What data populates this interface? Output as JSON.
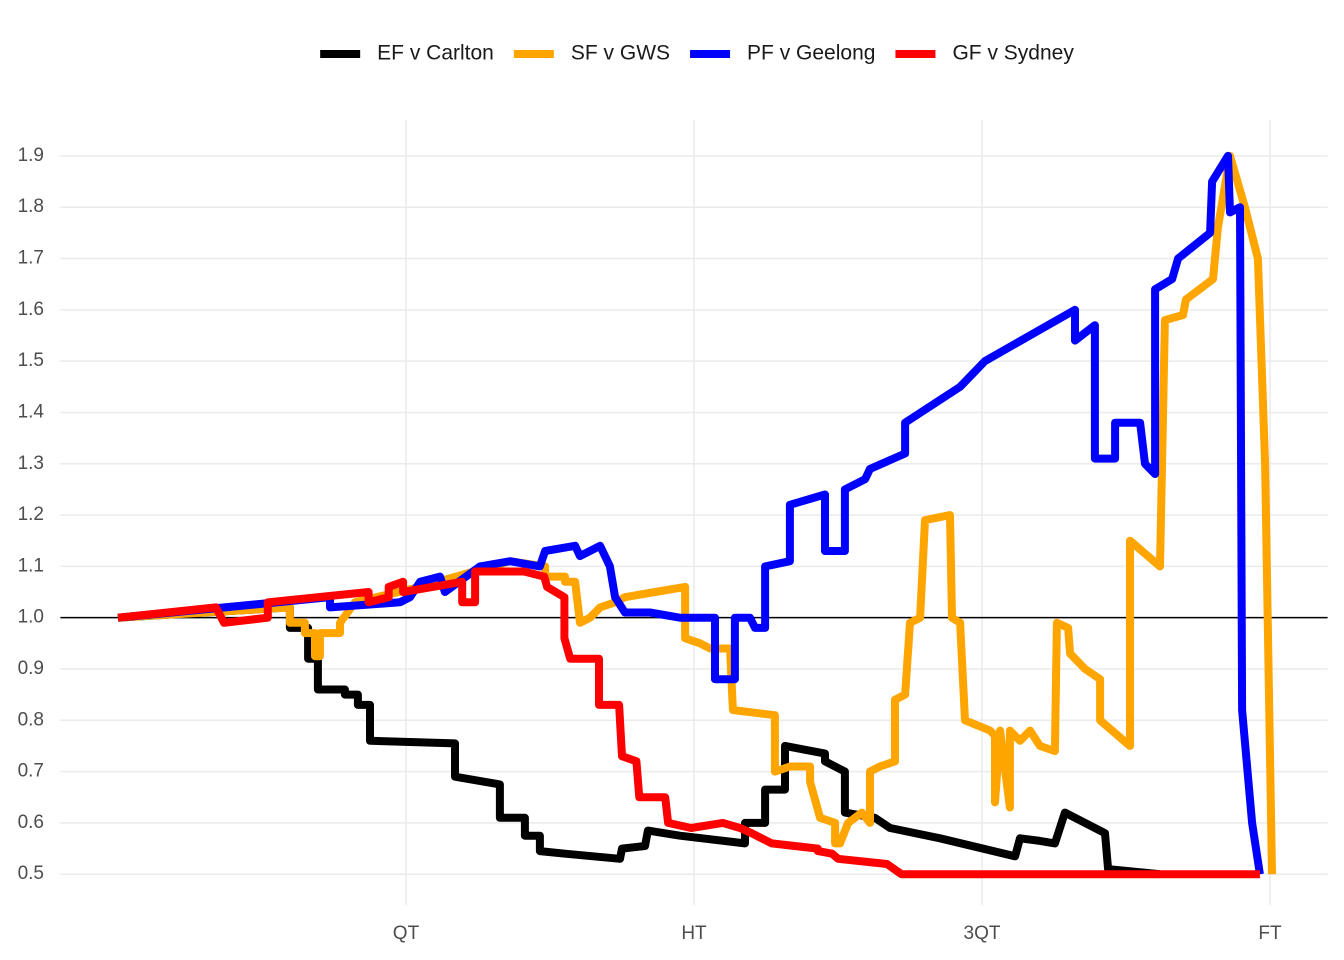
{
  "chart_data": {
    "type": "line",
    "xlim": [
      -0.2,
      4.2
    ],
    "xticks": [
      {
        "value": 1,
        "label": "QT"
      },
      {
        "value": 2,
        "label": "HT"
      },
      {
        "value": 3,
        "label": "3QT"
      },
      {
        "value": 4,
        "label": "FT"
      }
    ],
    "ylim": [
      0.44,
      1.97
    ],
    "yticks": [
      0.5,
      0.6,
      0.7,
      0.8,
      0.9,
      {
        "value": 1,
        "label": "1.0"
      },
      1.1,
      1.2,
      1.3,
      1.4,
      1.5,
      1.6,
      1.7,
      1.8,
      1.9
    ],
    "hline": 1,
    "grid": true,
    "legend": "top",
    "series": [
      {
        "name": "EF v Carlton",
        "color": "#000000",
        "x": [
          0,
          0.597,
          0.597,
          0.66,
          0.66,
          0.694,
          0.694,
          0.788,
          0.788,
          0.833,
          0.833,
          0.875,
          0.875,
          1.17,
          1.17,
          1.326,
          1.326,
          1.413,
          1.413,
          1.465,
          1.465,
          1.552,
          1.743,
          1.75,
          1.83,
          1.84,
          1.951,
          2.177,
          2.177,
          2.247,
          2.247,
          2.316,
          2.316,
          2.455,
          2.455,
          2.524,
          2.524,
          2.628,
          2.681,
          2.854,
          3.115,
          3.132,
          3.201,
          3.253,
          3.288,
          3.427,
          3.438,
          3.618
        ],
        "values": [
          1.0,
          1.02,
          0.98,
          0.98,
          0.92,
          0.92,
          0.86,
          0.86,
          0.85,
          0.85,
          0.83,
          0.83,
          0.76,
          0.755,
          0.69,
          0.675,
          0.61,
          0.61,
          0.575,
          0.575,
          0.545,
          0.54,
          0.53,
          0.55,
          0.555,
          0.585,
          0.575,
          0.56,
          0.6,
          0.6,
          0.665,
          0.665,
          0.75,
          0.735,
          0.72,
          0.7,
          0.62,
          0.61,
          0.59,
          0.57,
          0.535,
          0.57,
          0.565,
          0.56,
          0.62,
          0.58,
          0.51,
          0.5
        ]
      },
      {
        "name": "SF v GWS",
        "color": "#ffa500",
        "x": [
          0,
          0.597,
          0.597,
          0.649,
          0.649,
          0.684,
          0.684,
          0.701,
          0.701,
          0.771,
          0.771,
          0.823,
          1.049,
          1.361,
          1.483,
          1.483,
          1.552,
          1.552,
          1.587,
          1.604,
          1.639,
          1.674,
          1.726,
          1.76,
          1.865,
          1.969,
          1.969,
          2.021,
          2.056,
          2.125,
          2.135,
          2.281,
          2.281,
          2.333,
          2.403,
          2.403,
          2.438,
          2.49,
          2.49,
          2.507,
          2.535,
          2.583,
          2.611,
          2.611,
          2.646,
          2.698,
          2.698,
          2.733,
          2.75,
          2.785,
          2.802,
          2.889,
          2.896,
          2.924,
          2.941,
          3.028,
          3.045,
          3.045,
          3.063,
          3.097,
          3.097,
          3.132,
          3.167,
          3.201,
          3.253,
          3.26,
          3.299,
          3.306,
          3.358,
          3.41,
          3.41,
          3.514,
          3.514,
          3.618,
          3.635,
          3.698,
          3.708,
          3.802,
          3.819,
          3.861,
          3.913,
          3.958,
          3.983,
          4.007
        ],
        "values": [
          1.0,
          1.02,
          0.99,
          0.99,
          0.97,
          0.97,
          0.925,
          0.925,
          0.97,
          0.97,
          0.99,
          1.03,
          1.06,
          1.11,
          1.1,
          1.08,
          1.08,
          1.07,
          1.07,
          0.99,
          1.0,
          1.02,
          1.03,
          1.04,
          1.05,
          1.06,
          0.96,
          0.95,
          0.94,
          0.94,
          0.82,
          0.81,
          0.7,
          0.71,
          0.71,
          0.68,
          0.61,
          0.6,
          0.56,
          0.56,
          0.6,
          0.62,
          0.6,
          0.7,
          0.71,
          0.72,
          0.84,
          0.85,
          0.99,
          1.0,
          1.19,
          1.2,
          1.0,
          0.99,
          0.8,
          0.78,
          0.77,
          0.64,
          0.78,
          0.63,
          0.78,
          0.76,
          0.78,
          0.75,
          0.74,
          0.99,
          0.98,
          0.93,
          0.9,
          0.88,
          0.8,
          0.75,
          1.15,
          1.1,
          1.58,
          1.59,
          1.62,
          1.66,
          1.76,
          1.9,
          1.8,
          1.7,
          1.3,
          0.5
        ]
      },
      {
        "name": "PF v Geelong",
        "color": "#0000ff",
        "x": [
          0,
          0.736,
          0.736,
          0.979,
          1.014,
          1.049,
          1.118,
          1.135,
          1.257,
          1.361,
          1.465,
          1.483,
          1.587,
          1.604,
          1.674,
          1.708,
          1.726,
          1.76,
          1.847,
          1.951,
          2.073,
          2.073,
          2.142,
          2.142,
          2.194,
          2.212,
          2.247,
          2.247,
          2.333,
          2.333,
          2.455,
          2.455,
          2.524,
          2.524,
          2.594,
          2.611,
          2.733,
          2.733,
          2.924,
          3.01,
          3.323,
          3.323,
          3.392,
          3.392,
          3.462,
          3.462,
          3.549,
          3.566,
          3.601,
          3.601,
          3.66,
          3.681,
          3.792,
          3.799,
          3.854,
          3.861,
          3.896,
          3.903,
          3.938,
          3.965
        ],
        "values": [
          1.0,
          1.04,
          1.02,
          1.03,
          1.04,
          1.07,
          1.08,
          1.05,
          1.1,
          1.11,
          1.1,
          1.13,
          1.14,
          1.12,
          1.14,
          1.1,
          1.04,
          1.01,
          1.01,
          1.0,
          1.0,
          0.88,
          0.88,
          1.0,
          1.0,
          0.98,
          0.98,
          1.1,
          1.11,
          1.22,
          1.24,
          1.13,
          1.13,
          1.25,
          1.27,
          1.29,
          1.32,
          1.38,
          1.45,
          1.5,
          1.6,
          1.54,
          1.57,
          1.31,
          1.31,
          1.38,
          1.38,
          1.3,
          1.28,
          1.64,
          1.66,
          1.7,
          1.75,
          1.85,
          1.9,
          1.79,
          1.8,
          0.82,
          0.6,
          0.5
        ]
      },
      {
        "name": "GF v Sydney",
        "color": "#ff0000",
        "x": [
          0,
          0.34,
          0.368,
          0.52,
          0.52,
          0.87,
          0.87,
          0.94,
          0.94,
          0.99,
          0.99,
          1.195,
          1.195,
          1.24,
          1.24,
          1.41,
          1.48,
          1.49,
          1.55,
          1.55,
          1.57,
          1.67,
          1.67,
          1.74,
          1.75,
          1.8,
          1.81,
          1.9,
          1.91,
          1.99,
          2.1,
          2.16,
          2.2,
          2.27,
          2.43,
          2.43,
          2.48,
          2.5,
          2.67,
          2.72,
          3.9,
          3.965
        ],
        "values": [
          1.0,
          1.02,
          0.99,
          1.0,
          1.03,
          1.05,
          1.03,
          1.04,
          1.06,
          1.07,
          1.05,
          1.07,
          1.03,
          1.03,
          1.09,
          1.09,
          1.08,
          1.06,
          1.04,
          0.96,
          0.92,
          0.92,
          0.83,
          0.83,
          0.73,
          0.72,
          0.65,
          0.65,
          0.6,
          0.59,
          0.6,
          0.59,
          0.58,
          0.56,
          0.55,
          0.545,
          0.54,
          0.53,
          0.52,
          0.5,
          0.5,
          0.5
        ]
      }
    ]
  }
}
